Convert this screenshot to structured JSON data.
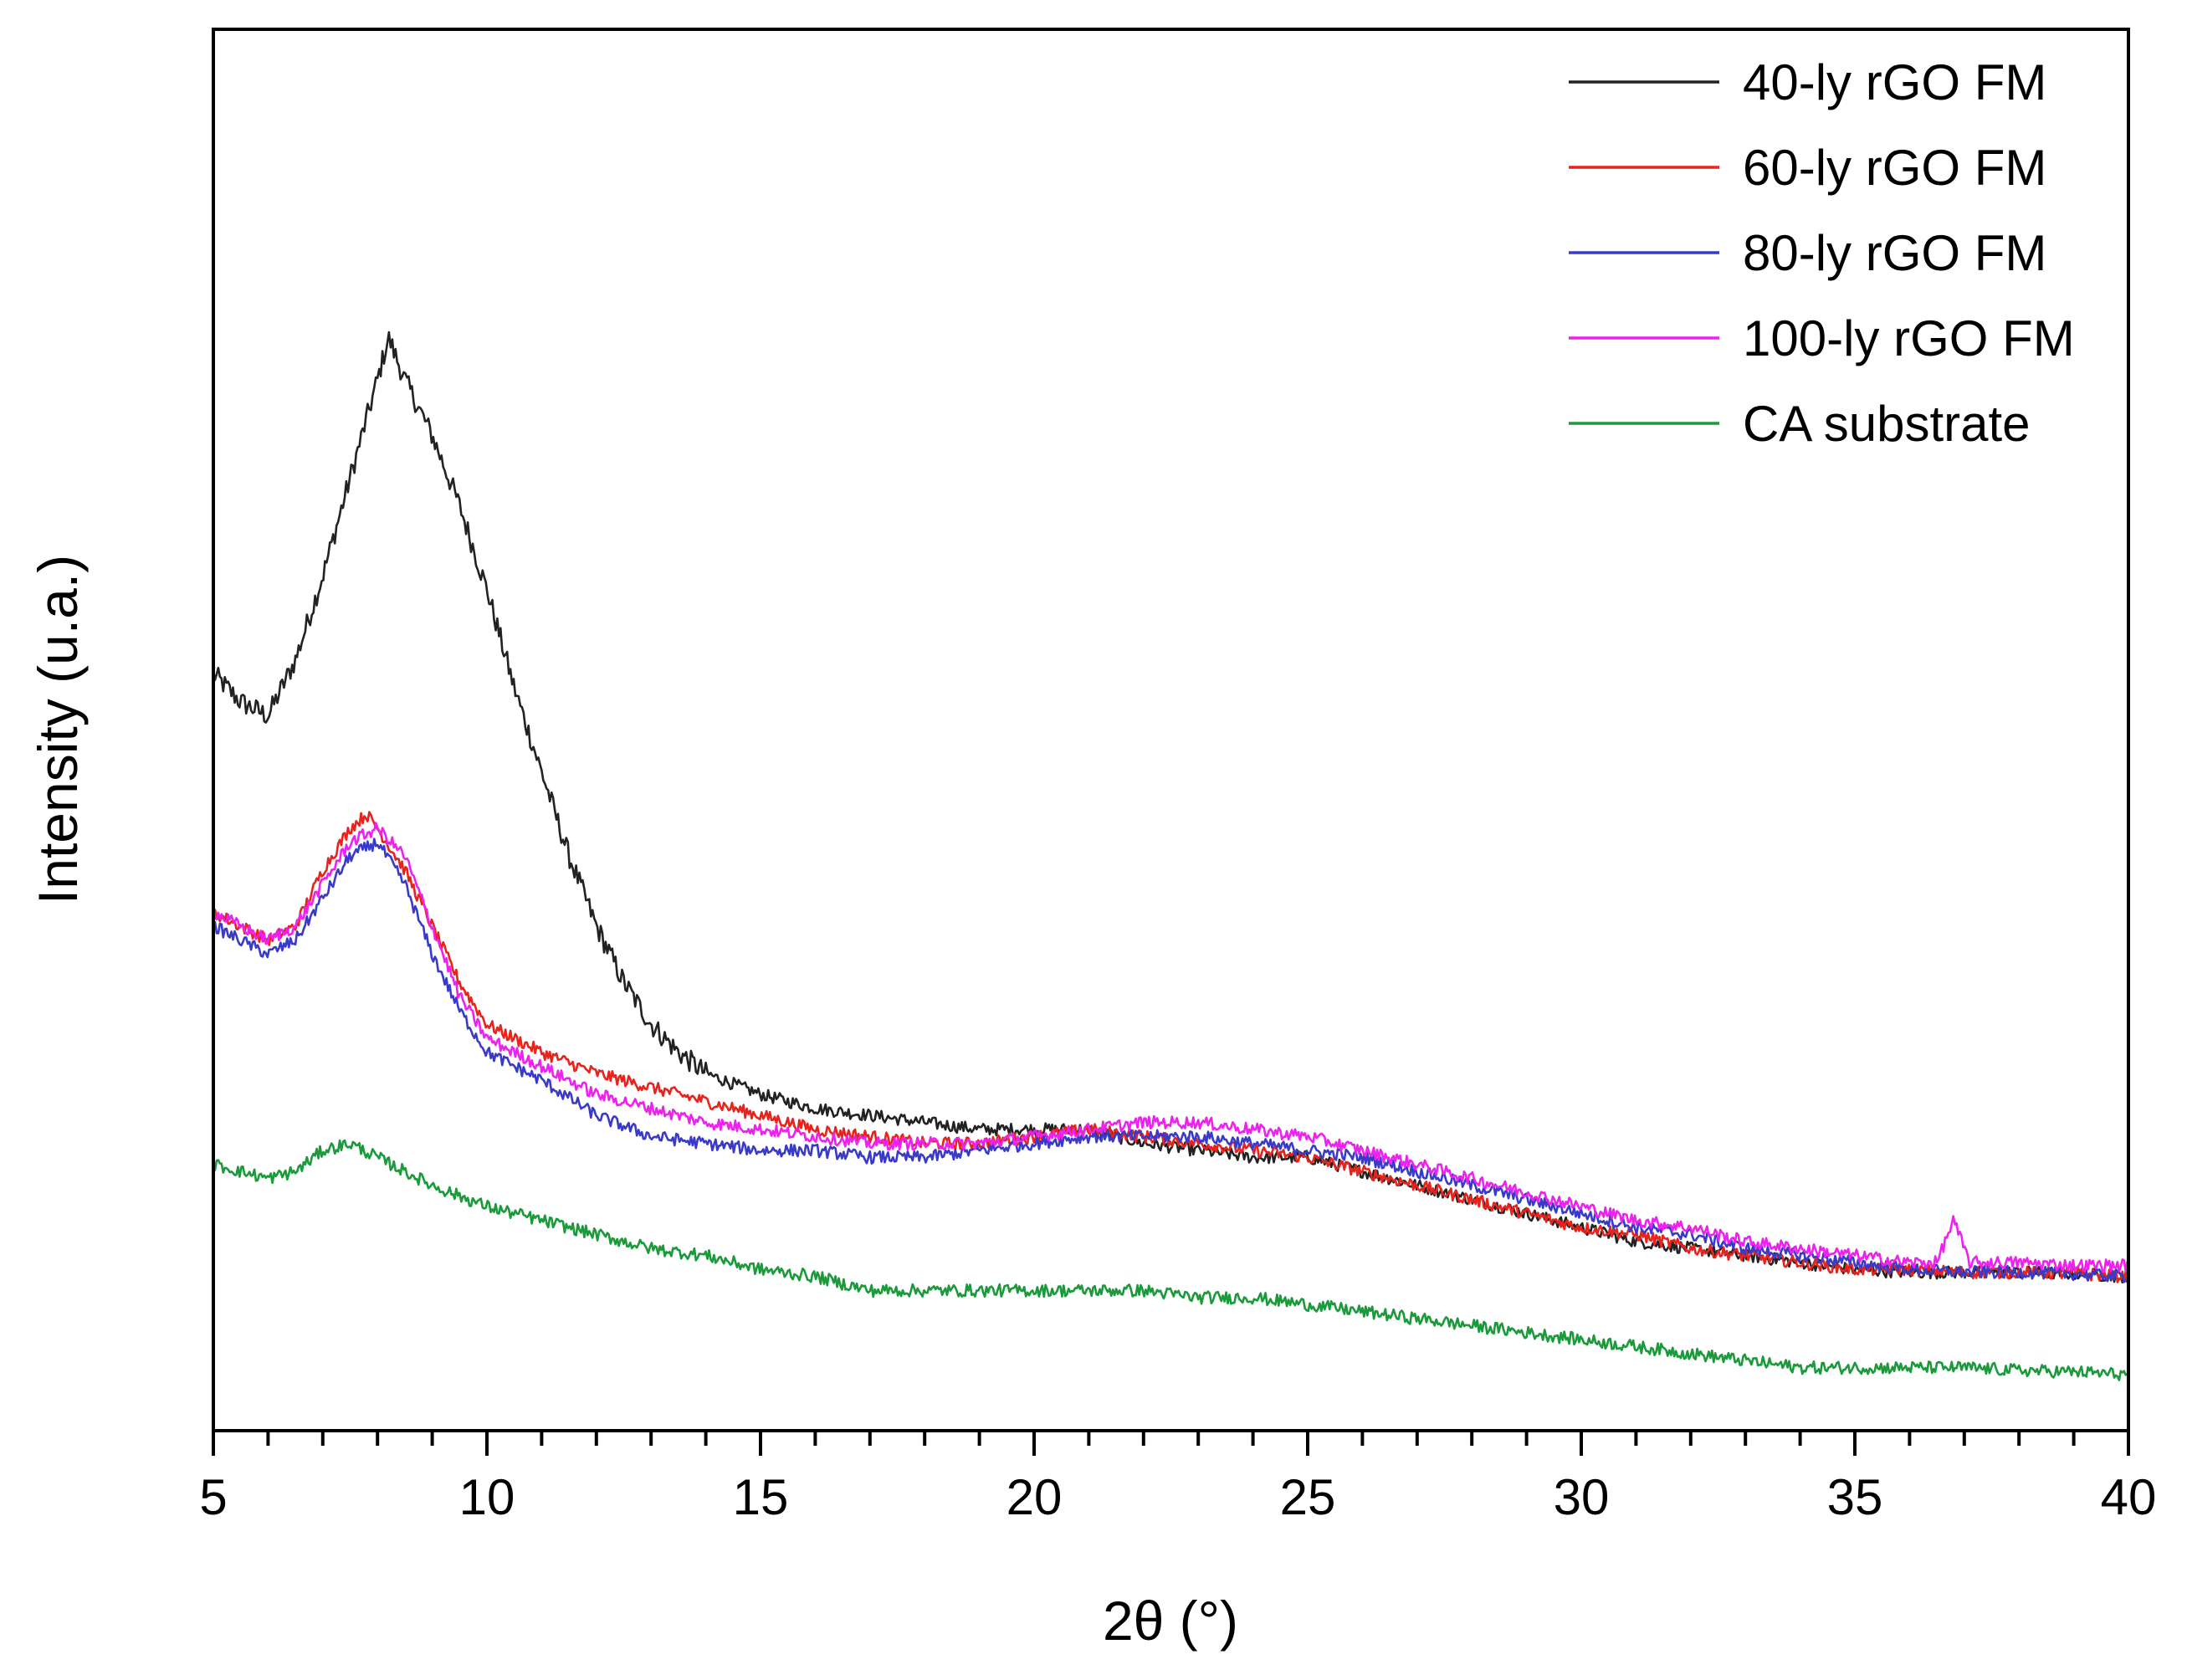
{
  "chart_data": {
    "type": "line",
    "xlabel": "2θ (°)",
    "ylabel": "Intensity (u.a.)",
    "xlim": [
      5,
      40
    ],
    "ylim": [
      0,
      100
    ],
    "x_ticks": [
      "5",
      "10",
      "15",
      "20",
      "25",
      "30",
      "35",
      "40"
    ],
    "x_tick_values": [
      5,
      10,
      15,
      20,
      25,
      30,
      35,
      40
    ],
    "y_ticks_shown": false,
    "grid": false,
    "legend_position": "top-right",
    "series": [
      {
        "name": "40-ly rGO FM",
        "color": "#222222",
        "x": [
          5,
          5.5,
          6,
          6.5,
          7,
          7.5,
          8,
          8.2,
          8.5,
          9,
          9.5,
          10,
          10.5,
          11,
          11.5,
          12,
          12.5,
          13,
          13.5,
          14,
          15,
          16,
          17,
          18,
          19,
          20,
          21,
          22,
          23,
          24,
          25,
          26,
          27,
          28,
          29,
          30,
          31,
          32,
          33,
          34,
          35,
          36,
          37,
          38,
          39,
          40
        ],
        "y": [
          54,
          52,
          51,
          55,
          61,
          68,
          75,
          78,
          75,
          71,
          66,
          60,
          53,
          47,
          41,
          36,
          32,
          29,
          27,
          25.5,
          24,
          23,
          22.5,
          22,
          21.5,
          21.5,
          21.5,
          20.5,
          20,
          19.5,
          19.5,
          18.5,
          17.5,
          16.5,
          15.5,
          14.5,
          13.5,
          13,
          12.5,
          12,
          11.5,
          11.3,
          11.3,
          11.3,
          11.2,
          11.0
        ]
      },
      {
        "name": "60-ly rGO FM",
        "color": "#e8221c",
        "x": [
          5,
          5.5,
          6,
          6.5,
          7,
          7.5,
          7.8,
          8,
          8.5,
          9,
          9.5,
          10,
          11,
          12,
          13,
          14,
          15,
          16,
          17,
          18,
          19,
          20,
          21,
          22,
          23,
          24,
          25,
          26,
          27,
          28,
          29,
          30,
          31,
          32,
          33,
          34,
          35,
          36,
          37,
          38,
          39,
          40
        ],
        "y": [
          37,
          36,
          35,
          36,
          40,
          43,
          44,
          43,
          40,
          36,
          32,
          29,
          27,
          25.5,
          24.5,
          23.5,
          22.5,
          21.5,
          21,
          20.5,
          20.5,
          21,
          21.5,
          21,
          20.5,
          20,
          19.5,
          18.5,
          17.5,
          16.5,
          15.5,
          14.5,
          14,
          13,
          12.5,
          12,
          11.5,
          11.5,
          11.3,
          11.3,
          11.2,
          11.0
        ]
      },
      {
        "name": "80-ly rGO FM",
        "color": "#3a3ac8",
        "x": [
          5,
          5.5,
          6,
          6.5,
          7,
          7.5,
          8,
          8.5,
          9,
          9.5,
          10,
          11,
          12,
          13,
          14,
          15,
          16,
          17,
          18,
          19,
          20,
          21,
          22,
          23,
          24,
          25,
          26,
          27,
          28,
          29,
          30,
          31,
          32,
          33,
          34,
          35,
          36,
          37,
          38,
          39,
          40
        ],
        "y": [
          36,
          35,
          34,
          35,
          38,
          41,
          42,
          39,
          34,
          30,
          27,
          25,
          22.5,
          21,
          20.5,
          20,
          20,
          19.5,
          19.5,
          20,
          20.5,
          21,
          21,
          21,
          20.5,
          20,
          19.5,
          18.5,
          17.5,
          16.5,
          15.5,
          14.5,
          14,
          13,
          12.5,
          12,
          11.5,
          11.3,
          11.3,
          11.2,
          11.0
        ]
      },
      {
        "name": "100-ly rGO FM",
        "color": "#ee22ee",
        "x": [
          5,
          5.5,
          6,
          6.5,
          7,
          7.5,
          8,
          8.5,
          9,
          9.5,
          10,
          11,
          12,
          13,
          14,
          15,
          16,
          17,
          18,
          19,
          20,
          21,
          22,
          23,
          24,
          25,
          26,
          27,
          28,
          29,
          30,
          31,
          32,
          33,
          34,
          35,
          36,
          36.5,
          36.8,
          37.1,
          37.5,
          38,
          39,
          40
        ],
        "y": [
          37,
          36,
          35,
          36,
          39,
          42,
          43,
          41,
          36,
          31,
          28,
          26,
          24,
          23,
          22,
          21.5,
          21,
          20.5,
          20.5,
          20.5,
          21,
          21.5,
          22,
          22,
          21.5,
          21,
          20,
          19,
          18,
          17,
          16,
          15,
          14.5,
          13.5,
          13,
          12.5,
          12,
          12,
          15,
          12,
          12,
          12,
          11.8,
          11.8
        ]
      },
      {
        "name": "CA substrate",
        "color": "#1a9a3a",
        "x": [
          5,
          6,
          6.5,
          7,
          7.5,
          8,
          8.5,
          9,
          10,
          11,
          12,
          13,
          14,
          15,
          16,
          17,
          18,
          19,
          20,
          21,
          22,
          23,
          24,
          25,
          26,
          27,
          28,
          29,
          30,
          31,
          32,
          33,
          34,
          35,
          36,
          37,
          38,
          39,
          40
        ],
        "y": [
          19,
          18,
          18.5,
          20,
          20.5,
          19.5,
          18.5,
          17.5,
          16,
          15,
          14,
          13,
          12.5,
          11.5,
          11,
          10,
          10,
          10,
          10,
          10,
          10,
          9.5,
          9.5,
          9,
          8.5,
          8,
          7.5,
          7,
          6.5,
          6,
          5.5,
          5,
          4.5,
          4.5,
          4.5,
          4.5,
          4.3,
          4.2,
          4.0
        ]
      }
    ]
  }
}
